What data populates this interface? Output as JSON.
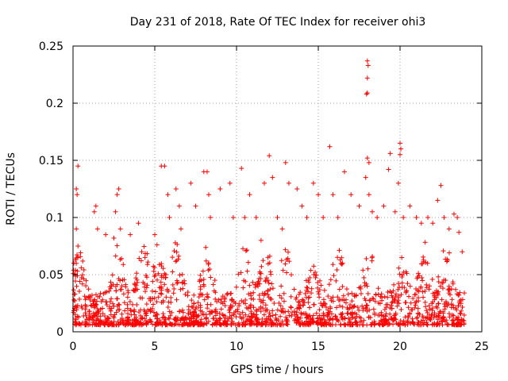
{
  "chart_data": {
    "type": "scatter",
    "title": "Day 231 of 2018, Rate Of TEC Index for receiver ohi3",
    "xlabel": "GPS time / hours",
    "ylabel": "ROTI / TECUs",
    "xlim": [
      0,
      25
    ],
    "ylim": [
      0,
      0.25
    ],
    "xticks": [
      "0",
      "5",
      "10",
      "15",
      "20",
      "25"
    ],
    "yticks": [
      "0",
      "0.05",
      "0.1",
      "0.15",
      "0.2",
      "0.25"
    ],
    "grid": true,
    "marker": "plus",
    "color": "#ff0000",
    "series": [
      {
        "name": "ohi3",
        "points": [
          [
            0.3,
            0.145
          ],
          [
            0.2,
            0.125
          ],
          [
            0.25,
            0.12
          ],
          [
            0.2,
            0.09
          ],
          [
            0.3,
            0.075
          ],
          [
            0.15,
            0.063
          ],
          [
            0.05,
            0.06
          ],
          [
            1.4,
            0.11
          ],
          [
            1.3,
            0.105
          ],
          [
            1.5,
            0.09
          ],
          [
            2.0,
            0.085
          ],
          [
            2.5,
            0.082
          ],
          [
            2.8,
            0.125
          ],
          [
            2.7,
            0.12
          ],
          [
            2.6,
            0.105
          ],
          [
            2.9,
            0.09
          ],
          [
            3.5,
            0.085
          ],
          [
            4.0,
            0.095
          ],
          [
            4.2,
            0.07
          ],
          [
            4.4,
            0.065
          ],
          [
            5.0,
            0.085
          ],
          [
            5.4,
            0.145
          ],
          [
            5.6,
            0.145
          ],
          [
            5.8,
            0.12
          ],
          [
            5.9,
            0.1
          ],
          [
            6.3,
            0.125
          ],
          [
            6.5,
            0.11
          ],
          [
            6.6,
            0.09
          ],
          [
            7.2,
            0.13
          ],
          [
            7.5,
            0.11
          ],
          [
            8.0,
            0.14
          ],
          [
            8.2,
            0.14
          ],
          [
            8.3,
            0.12
          ],
          [
            8.4,
            0.1
          ],
          [
            9.0,
            0.125
          ],
          [
            9.6,
            0.13
          ],
          [
            9.8,
            0.1
          ],
          [
            10.3,
            0.143
          ],
          [
            10.5,
            0.1
          ],
          [
            10.8,
            0.12
          ],
          [
            11.2,
            0.1
          ],
          [
            11.5,
            0.08
          ],
          [
            11.7,
            0.13
          ],
          [
            12.0,
            0.154
          ],
          [
            12.2,
            0.135
          ],
          [
            12.5,
            0.1
          ],
          [
            12.8,
            0.09
          ],
          [
            13.0,
            0.148
          ],
          [
            13.2,
            0.13
          ],
          [
            13.7,
            0.125
          ],
          [
            14.0,
            0.11
          ],
          [
            14.3,
            0.1
          ],
          [
            14.7,
            0.13
          ],
          [
            15.0,
            0.12
          ],
          [
            15.3,
            0.1
          ],
          [
            15.7,
            0.162
          ],
          [
            15.9,
            0.12
          ],
          [
            16.2,
            0.1
          ],
          [
            16.6,
            0.14
          ],
          [
            17.0,
            0.12
          ],
          [
            17.5,
            0.11
          ],
          [
            18.0,
            0.237
          ],
          [
            18.05,
            0.233
          ],
          [
            18.0,
            0.222
          ],
          [
            18.0,
            0.209
          ],
          [
            17.95,
            0.208
          ],
          [
            18.0,
            0.152
          ],
          [
            18.1,
            0.148
          ],
          [
            17.9,
            0.135
          ],
          [
            18.1,
            0.12
          ],
          [
            18.3,
            0.105
          ],
          [
            18.6,
            0.1
          ],
          [
            19.0,
            0.11
          ],
          [
            19.4,
            0.156
          ],
          [
            19.3,
            0.142
          ],
          [
            19.7,
            0.105
          ],
          [
            20.0,
            0.165
          ],
          [
            20.05,
            0.16
          ],
          [
            20.0,
            0.155
          ],
          [
            19.9,
            0.13
          ],
          [
            20.2,
            0.1
          ],
          [
            20.6,
            0.11
          ],
          [
            21.0,
            0.1
          ],
          [
            21.3,
            0.095
          ],
          [
            21.7,
            0.1
          ],
          [
            22.0,
            0.095
          ],
          [
            22.3,
            0.115
          ],
          [
            22.5,
            0.128
          ],
          [
            22.7,
            0.1
          ],
          [
            23.0,
            0.09
          ],
          [
            23.3,
            0.103
          ],
          [
            23.5,
            0.1
          ],
          [
            23.6,
            0.087
          ],
          [
            23.8,
            0.07
          ]
        ]
      }
    ]
  }
}
